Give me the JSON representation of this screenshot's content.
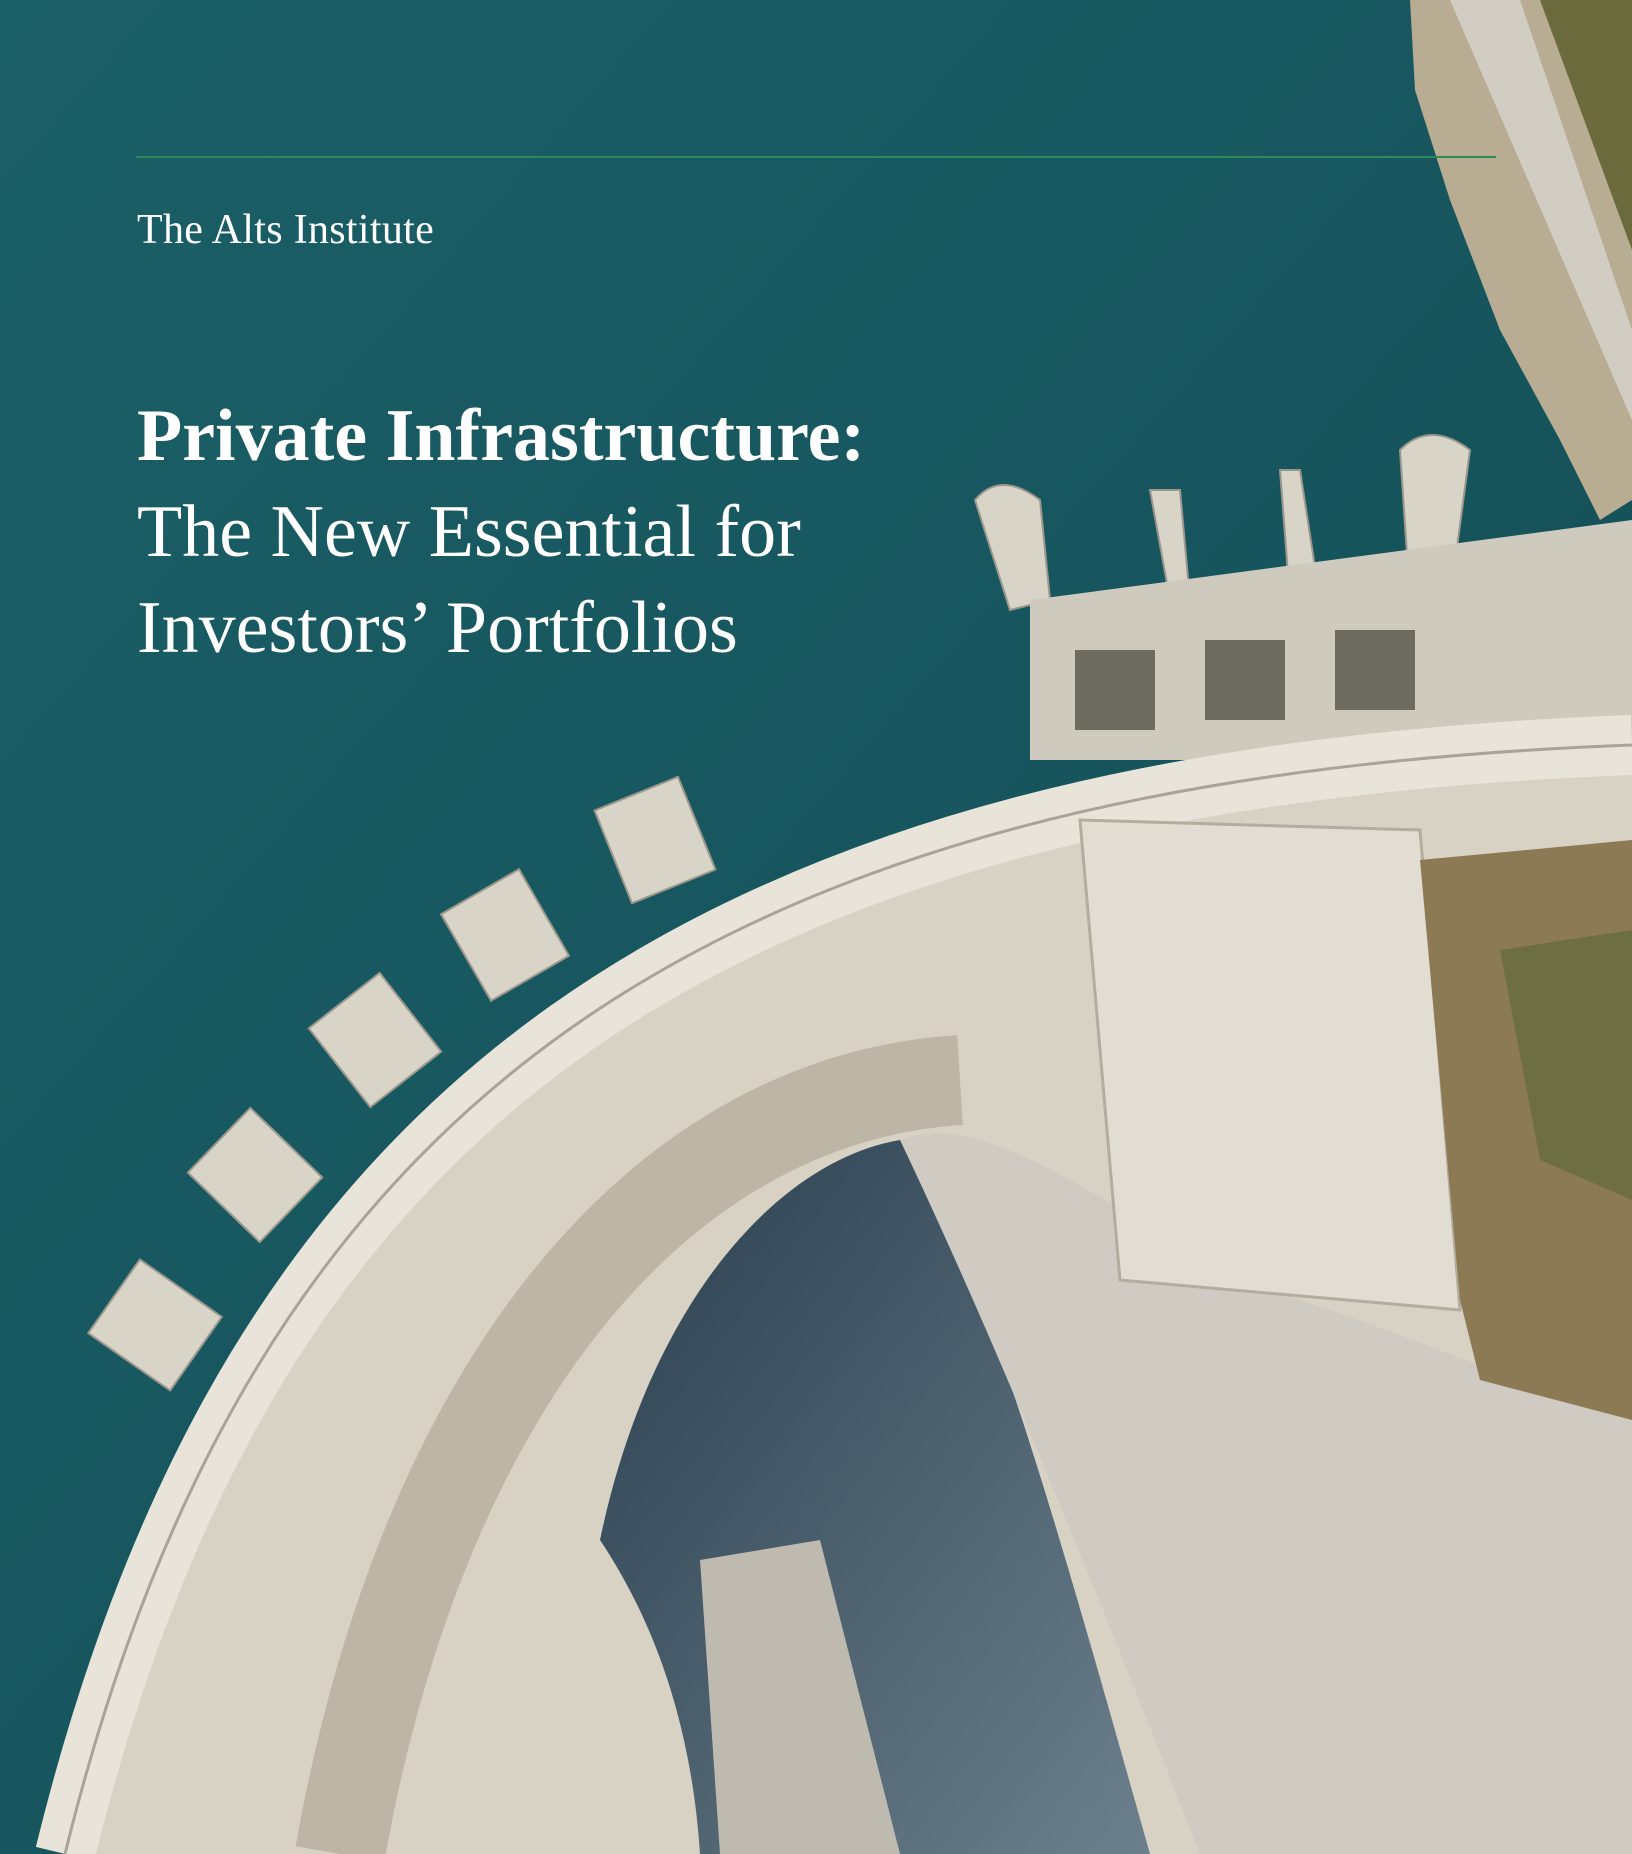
{
  "header": {
    "institute": "The Alts Institute"
  },
  "title": {
    "lines": [
      "Private Infrastructure:",
      "The New Essential for",
      "Investors’ Portfolios"
    ]
  }
}
